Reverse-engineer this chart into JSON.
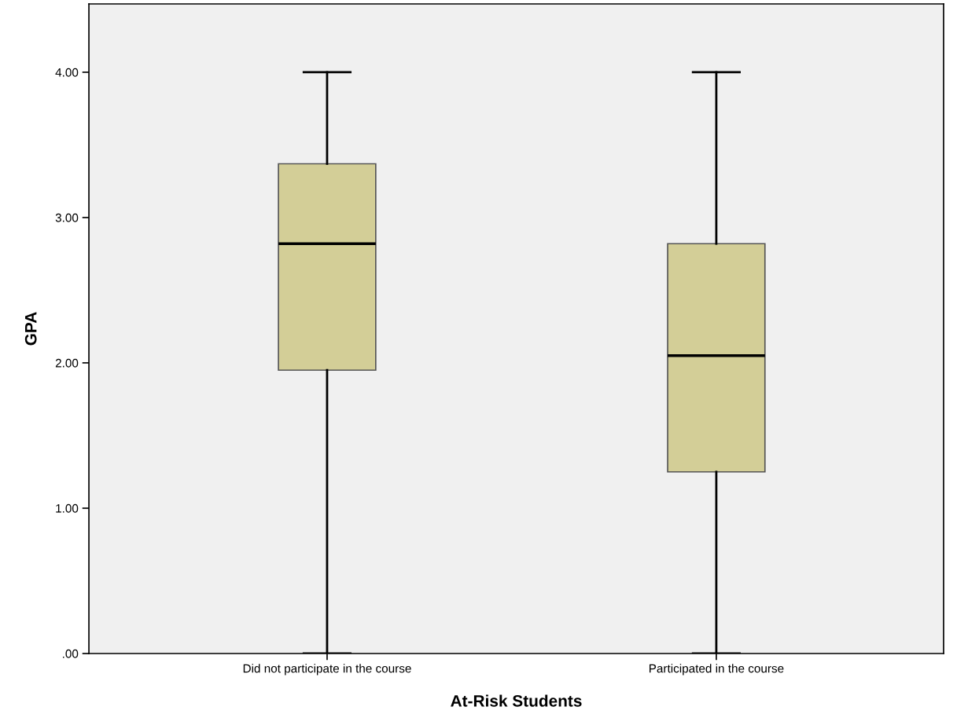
{
  "chart_data": {
    "type": "box",
    "xlabel": "At-Risk Students",
    "ylabel": "GPA",
    "categories": [
      "Did not participate in the course",
      "Participated in the course"
    ],
    "boxes": [
      {
        "low": 0,
        "q1": 1.95,
        "median": 2.82,
        "q3": 3.37,
        "high": 4.0
      },
      {
        "low": 0,
        "q1": 1.25,
        "median": 2.05,
        "q3": 2.82,
        "high": 4.0
      }
    ],
    "color": "#d3ce97",
    "ylim": [
      0,
      4.47
    ],
    "yticks": [
      {
        "value": 0,
        "label": ".00"
      },
      {
        "value": 1,
        "label": "1.00"
      },
      {
        "value": 2,
        "label": "2.00"
      },
      {
        "value": 3,
        "label": "3.00"
      },
      {
        "value": 4,
        "label": "4.00"
      }
    ],
    "grid": false,
    "legend": false
  }
}
